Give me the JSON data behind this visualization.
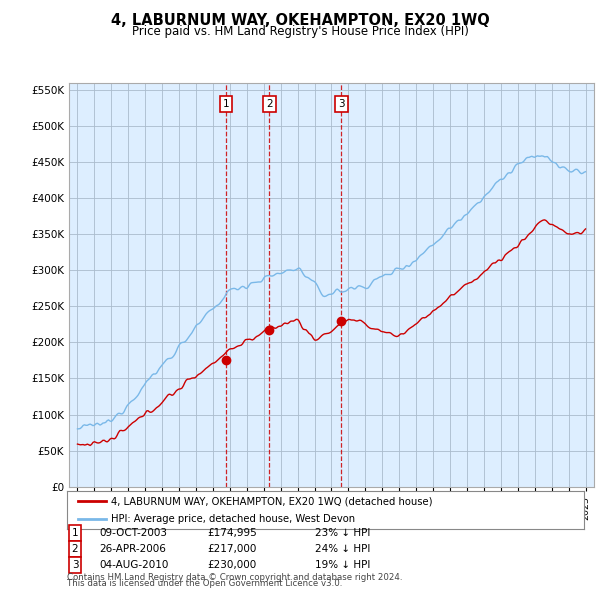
{
  "title": "4, LABURNUM WAY, OKEHAMPTON, EX20 1WQ",
  "subtitle": "Price paid vs. HM Land Registry's House Price Index (HPI)",
  "legend_line1": "4, LABURNUM WAY, OKEHAMPTON, EX20 1WQ (detached house)",
  "legend_line2": "HPI: Average price, detached house, West Devon",
  "footer1": "Contains HM Land Registry data © Crown copyright and database right 2024.",
  "footer2": "This data is licensed under the Open Government Licence v3.0.",
  "transactions": [
    {
      "num": 1,
      "date": "09-OCT-2003",
      "price": "£174,995",
      "hpi": "23% ↓ HPI",
      "year": 2003.77
    },
    {
      "num": 2,
      "date": "26-APR-2006",
      "price": "£217,000",
      "hpi": "24% ↓ HPI",
      "year": 2006.32
    },
    {
      "num": 3,
      "date": "04-AUG-2010",
      "price": "£230,000",
      "hpi": "19% ↓ HPI",
      "year": 2010.59
    }
  ],
  "sale_years": [
    2003.77,
    2006.32,
    2010.59
  ],
  "sale_prices": [
    174995,
    217000,
    230000
  ],
  "hpi_color": "#7ab8e8",
  "sale_color": "#cc0000",
  "vline_color": "#cc0000",
  "chart_bg": "#ddeeff",
  "ylim": [
    0,
    560000
  ],
  "yticks": [
    0,
    50000,
    100000,
    150000,
    200000,
    250000,
    300000,
    350000,
    400000,
    450000,
    500000,
    550000
  ],
  "xlim_start": 1994.5,
  "xlim_end": 2025.5,
  "bg_color": "#ffffff",
  "grid_color": "#aabbcc"
}
